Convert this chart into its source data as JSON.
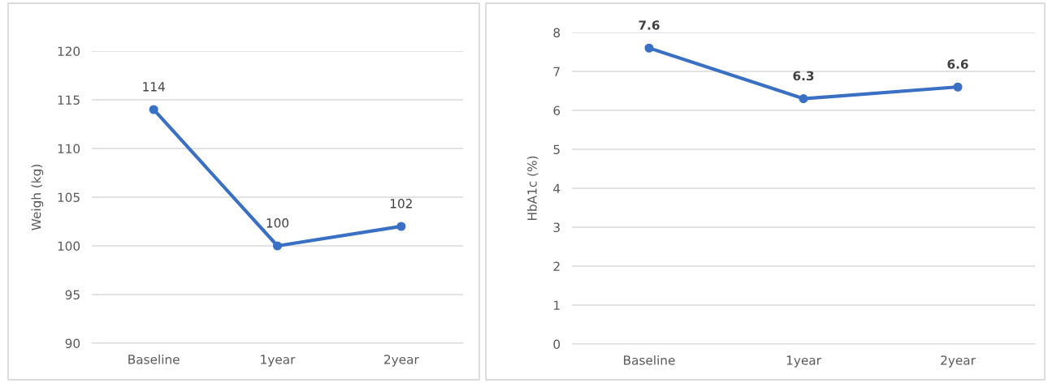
{
  "chart_data": [
    {
      "type": "line",
      "ylabel": "Weigh (kg)",
      "categories": [
        "Baseline",
        "1year",
        "2year"
      ],
      "series": [
        {
          "color": "#3a70c4",
          "values": [
            114,
            100,
            102
          ]
        }
      ],
      "ylim": [
        90,
        120
      ],
      "yticks": [
        90,
        95,
        100,
        105,
        110,
        115,
        120
      ],
      "grid": "y",
      "marker": "circle",
      "line_style": "solid",
      "data_labels": true
    },
    {
      "type": "line",
      "ylabel": "HbA1c (%)",
      "categories": [
        "Baseline",
        "1year",
        "2year"
      ],
      "series": [
        {
          "color": "#3a70c4",
          "values": [
            7.6,
            6.3,
            6.6
          ]
        }
      ],
      "ylim": [
        0,
        8
      ],
      "yticks": [
        0,
        1,
        2,
        3,
        4,
        5,
        6,
        7,
        8
      ],
      "grid": "y",
      "marker": "circle",
      "line_style": "solid",
      "data_labels": true
    }
  ]
}
